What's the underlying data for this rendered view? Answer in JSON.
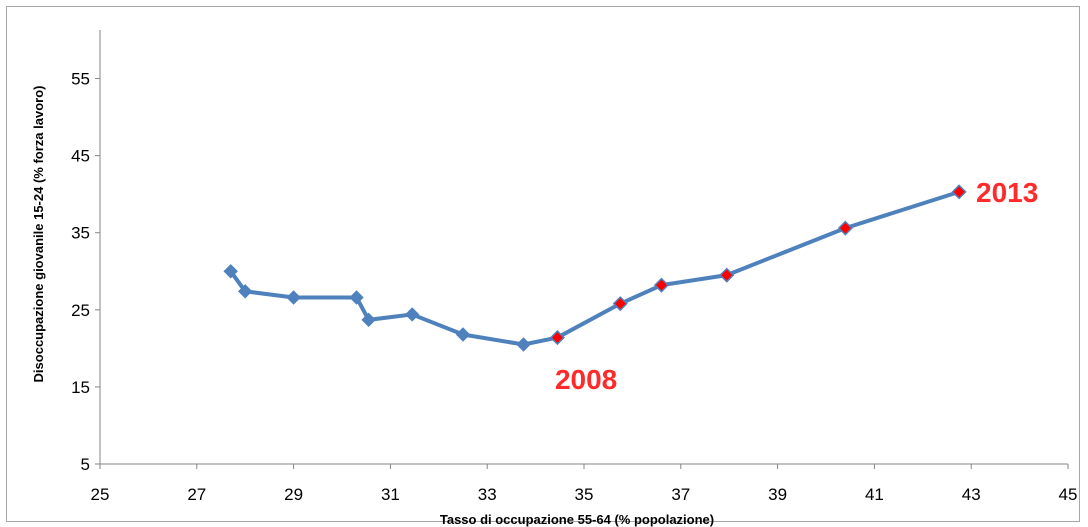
{
  "chart_data": {
    "type": "line",
    "xlabel": "Tasso di occupazione 55-64 (% popolazione)",
    "ylabel": "Disoccupazione giovanile 15-24 (% forza lavoro)",
    "xlim": [
      25,
      45
    ],
    "ylim": [
      5,
      60
    ],
    "x_ticks": [
      25,
      27,
      29,
      31,
      33,
      35,
      37,
      39,
      41,
      43,
      45
    ],
    "y_ticks": [
      5,
      15,
      25,
      35,
      45,
      55
    ],
    "grid": false,
    "series": [
      {
        "color": "#4f81bd",
        "points": [
          {
            "x": 27.7,
            "y": 30.0
          },
          {
            "x": 28.0,
            "y": 27.4
          },
          {
            "x": 29.0,
            "y": 26.6
          },
          {
            "x": 30.3,
            "y": 26.6
          },
          {
            "x": 30.55,
            "y": 23.7
          },
          {
            "x": 31.45,
            "y": 24.4
          },
          {
            "x": 32.5,
            "y": 21.8
          },
          {
            "x": 33.75,
            "y": 20.5
          },
          {
            "x": 34.45,
            "y": 21.4
          },
          {
            "x": 35.75,
            "y": 25.8
          },
          {
            "x": 36.6,
            "y": 28.2
          },
          {
            "x": 37.95,
            "y": 29.5
          },
          {
            "x": 40.4,
            "y": 35.6
          },
          {
            "x": 42.75,
            "y": 40.3
          }
        ],
        "highlight_from_index": 8,
        "highlight_color": "#ff0000"
      }
    ],
    "annotations": [
      {
        "text": "2008",
        "x": 34.4,
        "y": 16.0,
        "color": "#ff2a2a"
      },
      {
        "text": "2013",
        "x": 43.1,
        "y": 40.3,
        "color": "#ff2a2a"
      }
    ]
  }
}
